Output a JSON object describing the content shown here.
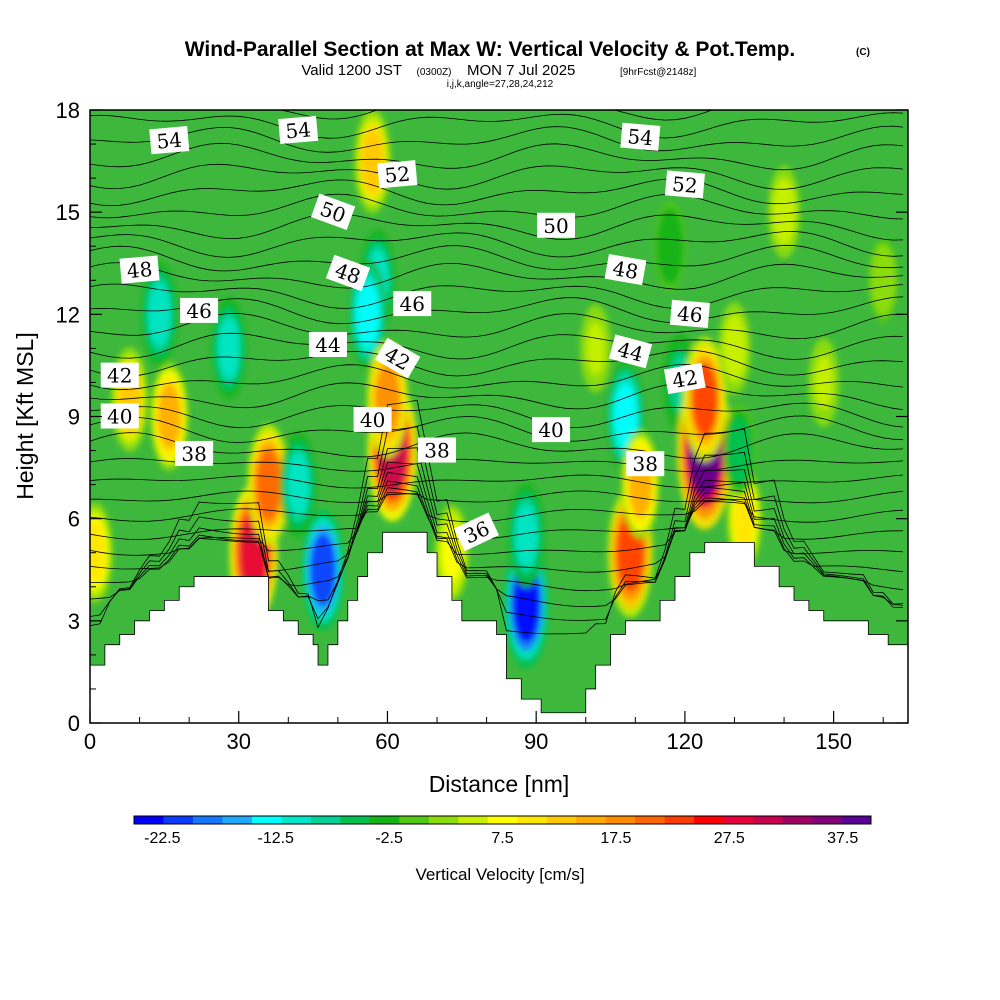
{
  "title": {
    "main": "Wind-Parallel Section at Max W: Vertical Velocity & Pot.Temp.",
    "copyright": "(C)",
    "valid_prefix": "Valid 1200 JST",
    "valid_utc": "(0300Z)",
    "valid_date": "MON 7 Jul 2025",
    "forecast": "[9hrFcst@2148z]",
    "indices": "i,j,k,angle=27,28,24,212"
  },
  "chart_data": {
    "type": "heatmap",
    "xlabel": "Distance [nm]",
    "ylabel": "Height [Kft MSL]",
    "xlim": [
      0,
      165
    ],
    "ylim": [
      0,
      18
    ],
    "xticks": [
      0,
      30,
      60,
      90,
      120,
      150
    ],
    "yticks": [
      0,
      3,
      6,
      9,
      12,
      15,
      18
    ],
    "colorbar": {
      "label": "Vertical Velocity [cm/s]",
      "tick_values": [
        -22.5,
        -12.5,
        -2.5,
        7.5,
        17.5,
        27.5,
        37.5
      ],
      "tick_labels": [
        "-22.5",
        "-12.5",
        "-2.5",
        "7.5",
        "17.5",
        "27.5",
        "37.5"
      ],
      "range": [
        -25,
        40
      ],
      "colors": [
        "#0000ff",
        "#0a3cff",
        "#1478ff",
        "#1eaaff",
        "#00ffff",
        "#00e6c8",
        "#00d296",
        "#00c050",
        "#14b414",
        "#50c814",
        "#8cdc0a",
        "#c8f000",
        "#ffff00",
        "#ffe600",
        "#ffc800",
        "#ffaa00",
        "#ff8c00",
        "#ff6400",
        "#ff3c00",
        "#ff0000",
        "#e6003c",
        "#c80050",
        "#a00064",
        "#820078",
        "#5a0096"
      ]
    },
    "vertical_velocity_features": [
      {
        "x": 1,
        "y": 5.0,
        "value": 10
      },
      {
        "x": 8,
        "y": 9.5,
        "value": 12
      },
      {
        "x": 16,
        "y": 9.0,
        "value": 14
      },
      {
        "x": 14,
        "y": 12.0,
        "value": -12
      },
      {
        "x": 28,
        "y": 11.0,
        "value": -10
      },
      {
        "x": 33,
        "y": 5.0,
        "value": 28
      },
      {
        "x": 36,
        "y": 7.0,
        "value": 20
      },
      {
        "x": 47,
        "y": 4.5,
        "value": -20
      },
      {
        "x": 42,
        "y": 7.0,
        "value": -12
      },
      {
        "x": 57,
        "y": 16.5,
        "value": 12
      },
      {
        "x": 58,
        "y": 13.0,
        "value": -10
      },
      {
        "x": 56,
        "y": 12.0,
        "value": -14
      },
      {
        "x": 61,
        "y": 8.0,
        "value": 30
      },
      {
        "x": 60,
        "y": 9.5,
        "value": 18
      },
      {
        "x": 73,
        "y": 5.0,
        "value": 8
      },
      {
        "x": 88,
        "y": 3.5,
        "value": -24
      },
      {
        "x": 88,
        "y": 5.5,
        "value": -12
      },
      {
        "x": 102,
        "y": 11.0,
        "value": 4
      },
      {
        "x": 108,
        "y": 9.0,
        "value": -14
      },
      {
        "x": 109,
        "y": 5.0,
        "value": 24
      },
      {
        "x": 111,
        "y": 7.0,
        "value": 14
      },
      {
        "x": 117,
        "y": 14.0,
        "value": -4
      },
      {
        "x": 119,
        "y": 10.0,
        "value": -8
      },
      {
        "x": 124,
        "y": 8.0,
        "value": 38
      },
      {
        "x": 124,
        "y": 9.5,
        "value": 22
      },
      {
        "x": 132,
        "y": 6.0,
        "value": 10
      },
      {
        "x": 131,
        "y": 8.0,
        "value": -6
      },
      {
        "x": 130,
        "y": 11.0,
        "value": 6
      },
      {
        "x": 140,
        "y": 15.0,
        "value": 6
      },
      {
        "x": 148,
        "y": 10.0,
        "value": 4
      },
      {
        "x": 160,
        "y": 13.0,
        "value": 2
      }
    ],
    "terrain_kft": [
      {
        "x": 0,
        "h": 1.7
      },
      {
        "x": 3,
        "h": 2.3
      },
      {
        "x": 6,
        "h": 2.6
      },
      {
        "x": 9,
        "h": 3.0
      },
      {
        "x": 12,
        "h": 3.3
      },
      {
        "x": 15,
        "h": 3.6
      },
      {
        "x": 18,
        "h": 4.0
      },
      {
        "x": 21,
        "h": 4.3
      },
      {
        "x": 34,
        "h": 4.3
      },
      {
        "x": 36,
        "h": 3.3
      },
      {
        "x": 39,
        "h": 3.0
      },
      {
        "x": 42,
        "h": 2.6
      },
      {
        "x": 45,
        "h": 2.3
      },
      {
        "x": 46,
        "h": 1.7
      },
      {
        "x": 48,
        "h": 2.3
      },
      {
        "x": 50,
        "h": 3.0
      },
      {
        "x": 52,
        "h": 3.6
      },
      {
        "x": 54,
        "h": 4.3
      },
      {
        "x": 56,
        "h": 5.0
      },
      {
        "x": 59,
        "h": 5.6
      },
      {
        "x": 66,
        "h": 5.6
      },
      {
        "x": 68,
        "h": 5.0
      },
      {
        "x": 70,
        "h": 4.3
      },
      {
        "x": 73,
        "h": 3.6
      },
      {
        "x": 75,
        "h": 3.0
      },
      {
        "x": 82,
        "h": 2.6
      },
      {
        "x": 84,
        "h": 1.3
      },
      {
        "x": 87,
        "h": 0.7
      },
      {
        "x": 89,
        "h": 0.7
      },
      {
        "x": 91,
        "h": 0.3
      },
      {
        "x": 96,
        "h": 0.3
      },
      {
        "x": 100,
        "h": 1.0
      },
      {
        "x": 102,
        "h": 1.7
      },
      {
        "x": 105,
        "h": 2.6
      },
      {
        "x": 108,
        "h": 3.0
      },
      {
        "x": 115,
        "h": 3.6
      },
      {
        "x": 118,
        "h": 4.3
      },
      {
        "x": 121,
        "h": 5.0
      },
      {
        "x": 124,
        "h": 5.3
      },
      {
        "x": 130,
        "h": 5.3
      },
      {
        "x": 134,
        "h": 4.6
      },
      {
        "x": 139,
        "h": 4.0
      },
      {
        "x": 142,
        "h": 3.6
      },
      {
        "x": 145,
        "h": 3.3
      },
      {
        "x": 148,
        "h": 3.0
      },
      {
        "x": 157,
        "h": 2.6
      },
      {
        "x": 161,
        "h": 2.3
      },
      {
        "x": 165,
        "h": 2.3
      }
    ],
    "potential_temperature_contours": {
      "levels": [
        36,
        38,
        40,
        42,
        44,
        46,
        48,
        50,
        52,
        54
      ],
      "labels": [
        {
          "text": "54",
          "x": 16,
          "y": 17.1,
          "angle": -5
        },
        {
          "text": "54",
          "x": 42,
          "y": 17.4,
          "angle": -5
        },
        {
          "text": "54",
          "x": 111,
          "y": 17.2,
          "angle": 5
        },
        {
          "text": "52",
          "x": 62,
          "y": 16.1,
          "angle": -5
        },
        {
          "text": "52",
          "x": 120,
          "y": 15.8,
          "angle": 5
        },
        {
          "text": "50",
          "x": 49,
          "y": 15.0,
          "angle": 20
        },
        {
          "text": "50",
          "x": 94,
          "y": 14.6,
          "angle": 0
        },
        {
          "text": "48",
          "x": 10,
          "y": 13.3,
          "angle": -5
        },
        {
          "text": "48",
          "x": 52,
          "y": 13.2,
          "angle": 20
        },
        {
          "text": "48",
          "x": 108,
          "y": 13.3,
          "angle": 10
        },
        {
          "text": "46",
          "x": 22,
          "y": 12.1,
          "angle": 0
        },
        {
          "text": "46",
          "x": 65,
          "y": 12.3,
          "angle": 0
        },
        {
          "text": "46",
          "x": 121,
          "y": 12.0,
          "angle": 5
        },
        {
          "text": "44",
          "x": 48,
          "y": 11.1,
          "angle": 0
        },
        {
          "text": "44",
          "x": 109,
          "y": 10.9,
          "angle": 15
        },
        {
          "text": "42",
          "x": 6,
          "y": 10.2,
          "angle": 0
        },
        {
          "text": "42",
          "x": 62,
          "y": 10.7,
          "angle": 30
        },
        {
          "text": "42",
          "x": 120,
          "y": 10.1,
          "angle": -10
        },
        {
          "text": "40",
          "x": 6,
          "y": 9.0,
          "angle": 0
        },
        {
          "text": "40",
          "x": 57,
          "y": 8.9,
          "angle": 0
        },
        {
          "text": "40",
          "x": 93,
          "y": 8.6,
          "angle": 0
        },
        {
          "text": "38",
          "x": 21,
          "y": 7.9,
          "angle": 0
        },
        {
          "text": "38",
          "x": 70,
          "y": 8.0,
          "angle": 0
        },
        {
          "text": "38",
          "x": 112,
          "y": 7.6,
          "angle": 0
        },
        {
          "text": "36",
          "x": 78,
          "y": 5.6,
          "angle": -25
        }
      ]
    }
  }
}
